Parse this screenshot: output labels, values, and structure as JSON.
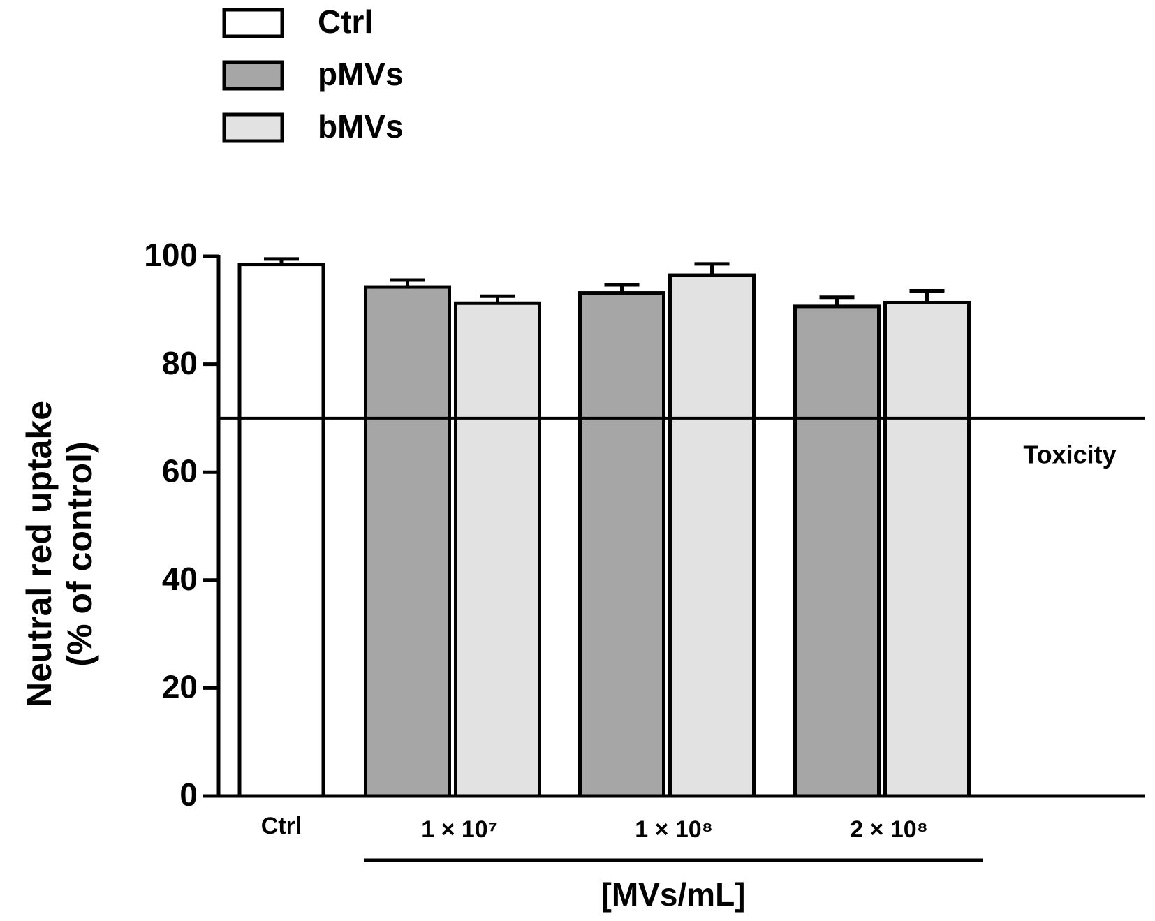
{
  "chart_data": {
    "type": "bar",
    "ylabel": [
      "Neutral red uptake",
      "(% of control)"
    ],
    "xlabel": "[MVs/mL]",
    "categories": [
      "Ctrl",
      "1 × 10⁷",
      "1 × 10⁸",
      "2 × 10⁸"
    ],
    "series": [
      {
        "name": "Ctrl",
        "color": "#ffffff",
        "values": [
          98.5,
          null,
          null,
          null
        ],
        "errors": [
          1.0,
          null,
          null,
          null
        ]
      },
      {
        "name": "pMVs",
        "color": "#a6a6a6",
        "values": [
          null,
          94.3,
          93.2,
          90.7
        ],
        "errors": [
          null,
          1.3,
          1.5,
          1.7
        ]
      },
      {
        "name": "bMVs",
        "color": "#e2e2e2",
        "values": [
          null,
          91.3,
          96.5,
          91.4
        ],
        "errors": [
          null,
          1.3,
          2.1,
          2.2
        ]
      }
    ],
    "ylim": [
      0,
      100
    ],
    "yticks": [
      0,
      20,
      40,
      60,
      80,
      100
    ],
    "reference_line": {
      "value": 70,
      "label": "Toxicity"
    },
    "legend": "top-left"
  }
}
